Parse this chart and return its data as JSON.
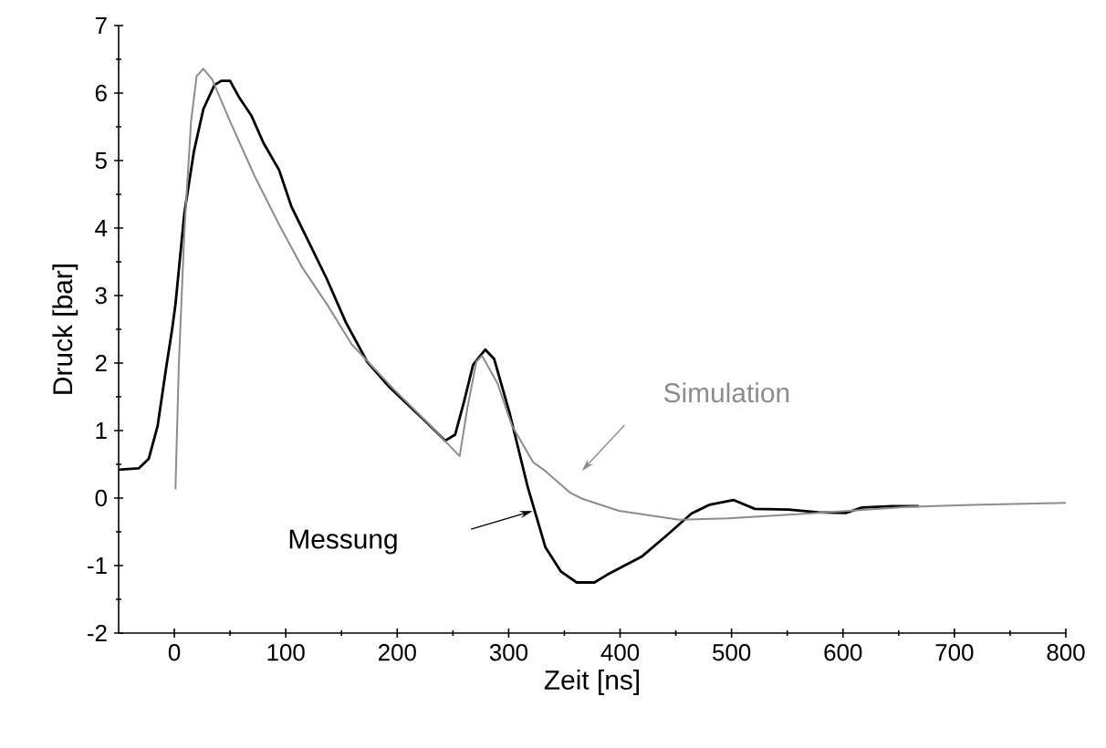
{
  "chart_data": {
    "type": "line",
    "xlabel": "Zeit [ns]",
    "ylabel": "Druck [bar]",
    "xlim": [
      -50,
      800
    ],
    "ylim": [
      -2,
      7
    ],
    "xticks": [
      0,
      100,
      200,
      300,
      400,
      500,
      600,
      700,
      800
    ],
    "yticks": [
      -2,
      -1,
      0,
      1,
      2,
      3,
      4,
      5,
      6,
      7
    ],
    "series": [
      {
        "color": "#000000",
        "x": [
          -50,
          -32,
          -23,
          -15,
          -7,
          -2,
          1,
          9,
          17.5,
          26,
          36,
          42,
          50,
          58,
          69,
          80,
          94,
          105,
          121,
          137,
          154,
          173,
          192,
          224,
          243,
          252,
          260,
          268,
          279,
          287,
          301,
          317,
          333,
          347,
          361,
          377,
          388,
          420,
          442,
          464,
          480,
          502,
          521,
          551,
          578,
          603,
          617,
          644,
          668
        ],
        "values": [
          0.42,
          0.44,
          0.58,
          1.07,
          1.97,
          2.5,
          2.87,
          4.22,
          5.13,
          5.76,
          6.12,
          6.18,
          6.18,
          5.94,
          5.67,
          5.26,
          4.86,
          4.32,
          3.78,
          3.24,
          2.6,
          2.02,
          1.66,
          1.16,
          0.85,
          0.94,
          1.43,
          1.97,
          2.2,
          2.06,
          1.25,
          0.17,
          -0.73,
          -1.09,
          -1.25,
          -1.25,
          -1.14,
          -0.86,
          -0.55,
          -0.23,
          -0.1,
          -0.03,
          -0.16,
          -0.17,
          -0.21,
          -0.22,
          -0.14,
          -0.12,
          -0.12
        ]
      },
      {
        "color": "#8c8c8c",
        "x": [
          1,
          4,
          9,
          15,
          20,
          26,
          34,
          50,
          72,
          94,
          115,
          137,
          159,
          197,
          230,
          256,
          263,
          271,
          276,
          290,
          303,
          322,
          333,
          355,
          366,
          399,
          453,
          497,
          578,
          660,
          715,
          800
        ],
        "values": [
          0.13,
          1.97,
          3.95,
          5.58,
          6.25,
          6.36,
          6.2,
          5.58,
          4.77,
          4.05,
          3.41,
          2.87,
          2.28,
          1.61,
          1.07,
          0.62,
          1.34,
          2.02,
          2.11,
          1.7,
          1.07,
          0.53,
          0.4,
          0.08,
          -0.01,
          -0.19,
          -0.32,
          -0.3,
          -0.22,
          -0.13,
          -0.1,
          -0.07
        ]
      }
    ],
    "annotations": [
      "Simulation",
      "Messung"
    ]
  }
}
